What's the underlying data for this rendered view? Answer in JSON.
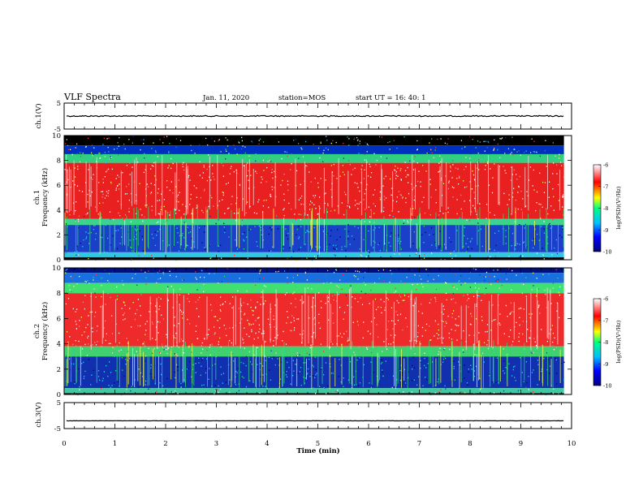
{
  "header": {
    "title": "VLF Spectra",
    "date": "Jan. 11, 2020",
    "station": "station=MOS",
    "start": "start UT =  16: 40: 1"
  },
  "chart_data": [
    {
      "type": "line",
      "panel": "ch.1 waveform",
      "ylabel": "ch.1(V)",
      "ylim": [
        -5,
        5
      ],
      "yticks": [
        "5",
        "-5"
      ],
      "series": [
        {
          "value_approx": 0.0
        }
      ]
    },
    {
      "type": "heatmap",
      "panel": "ch.1 spectrogram",
      "ylabel_top": "ch.1",
      "ylabel": "Frequency (kHz)",
      "ylim": [
        0,
        10
      ],
      "yticks": [
        "0",
        "2",
        "4",
        "6",
        "8",
        "10"
      ],
      "colorbar": {
        "label": "log(PSD)(V²/Hz)",
        "range": [
          -10,
          -6
        ],
        "ticks": [
          "-6",
          "-7",
          "-8",
          "-9",
          "-10"
        ],
        "colors": [
          "#000080",
          "#0000ff",
          "#00bfff",
          "#00ff7f",
          "#ffff00",
          "#ff0000",
          "#ffffff"
        ]
      },
      "bands": [
        {
          "from": 9.2,
          "to": 10,
          "color": "#000000"
        },
        {
          "from": 8.5,
          "to": 9.2,
          "color": "#0030c0"
        },
        {
          "from": 7.8,
          "to": 8.5,
          "color": "#30d080"
        },
        {
          "from": 3.3,
          "to": 7.8,
          "color": "#e82020"
        },
        {
          "from": 2.8,
          "to": 3.3,
          "color": "#40d090"
        },
        {
          "from": 0.6,
          "to": 2.8,
          "color": "#1a3fc8"
        },
        {
          "from": 0.2,
          "to": 0.6,
          "color": "#30c8e0"
        },
        {
          "from": 0,
          "to": 0.2,
          "color": "#000000"
        }
      ]
    },
    {
      "type": "heatmap",
      "panel": "ch.2 spectrogram",
      "ylabel_top": "ch.2",
      "ylabel": "Frequency (kHz)",
      "ylim": [
        0,
        10
      ],
      "yticks": [
        "0",
        "2",
        "4",
        "6",
        "8",
        "10"
      ],
      "colorbar": {
        "label": "log(PSD)(V²/Hz)",
        "range": [
          -10,
          -6
        ],
        "ticks": [
          "-6",
          "-7",
          "-8",
          "-9",
          "-10"
        ],
        "colors": [
          "#000080",
          "#0000ff",
          "#00bfff",
          "#00ff7f",
          "#ffff00",
          "#ff0000",
          "#ffffff"
        ]
      },
      "bands": [
        {
          "from": 9.6,
          "to": 10,
          "color": "#001080"
        },
        {
          "from": 8.8,
          "to": 9.6,
          "color": "#1870e0"
        },
        {
          "from": 8.0,
          "to": 8.8,
          "color": "#40e070"
        },
        {
          "from": 3.8,
          "to": 8.0,
          "color": "#ee2a2a"
        },
        {
          "from": 3.0,
          "to": 3.8,
          "color": "#40d070"
        },
        {
          "from": 0.5,
          "to": 3.0,
          "color": "#1030b0"
        },
        {
          "from": 0.1,
          "to": 0.5,
          "color": "#40c8a0"
        },
        {
          "from": 0,
          "to": 0.1,
          "color": "#000000"
        }
      ]
    },
    {
      "type": "line",
      "panel": "ch.3 waveform",
      "ylabel": "ch.3(V)",
      "ylim": [
        -5,
        5
      ],
      "yticks": [
        "5",
        "-5"
      ],
      "series": [
        {
          "value_approx": -2.0
        }
      ]
    }
  ],
  "xaxis": {
    "label": "Time (min)",
    "xlim": [
      0,
      10
    ],
    "ticks": [
      "0",
      "1",
      "2",
      "3",
      "4",
      "5",
      "6",
      "7",
      "8",
      "9",
      "10"
    ],
    "data_end": 9.85
  }
}
